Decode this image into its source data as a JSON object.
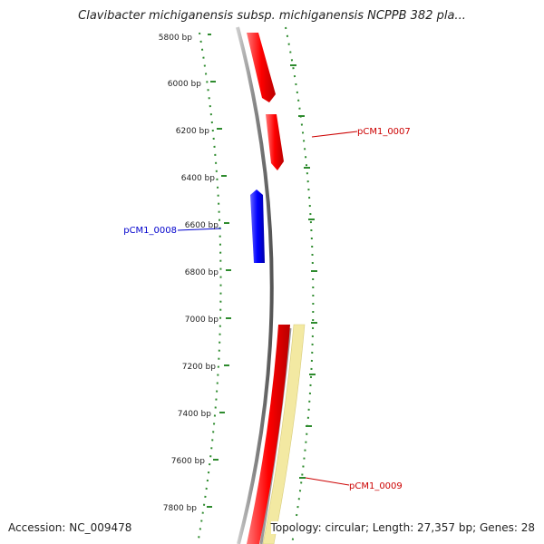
{
  "title": "Clavibacter michiganensis subsp. michiganensis NCPPB 382 pla...",
  "footer": {
    "accession": "Accession: NC_009478",
    "summary": "Topology: circular; Length: 27,357 bp; Genes: 28"
  },
  "ticks": [
    "5800 bp",
    "6000 bp",
    "6200 bp",
    "6400 bp",
    "6600 bp",
    "6800 bp",
    "7000 bp",
    "7200 bp",
    "7400 bp",
    "7600 bp",
    "7800 bp"
  ],
  "genes": [
    {
      "name": "",
      "color": "#ff0000",
      "strand": "forward"
    },
    {
      "name": "pCM1_0007",
      "color": "#ff0000",
      "strand": "forward",
      "label_color": "#cc0000"
    },
    {
      "name": "pCM1_0008",
      "color": "#0000ff",
      "strand": "reverse",
      "label_color": "#0000cc"
    },
    {
      "name": "pCM1_0009",
      "color": "#ff0000",
      "strand": "forward",
      "label_color": "#cc0000"
    }
  ],
  "colors": {
    "backbone": "#888888",
    "tick_marks": "#2e8b2e",
    "highlight_region": "#f3e9a2"
  }
}
